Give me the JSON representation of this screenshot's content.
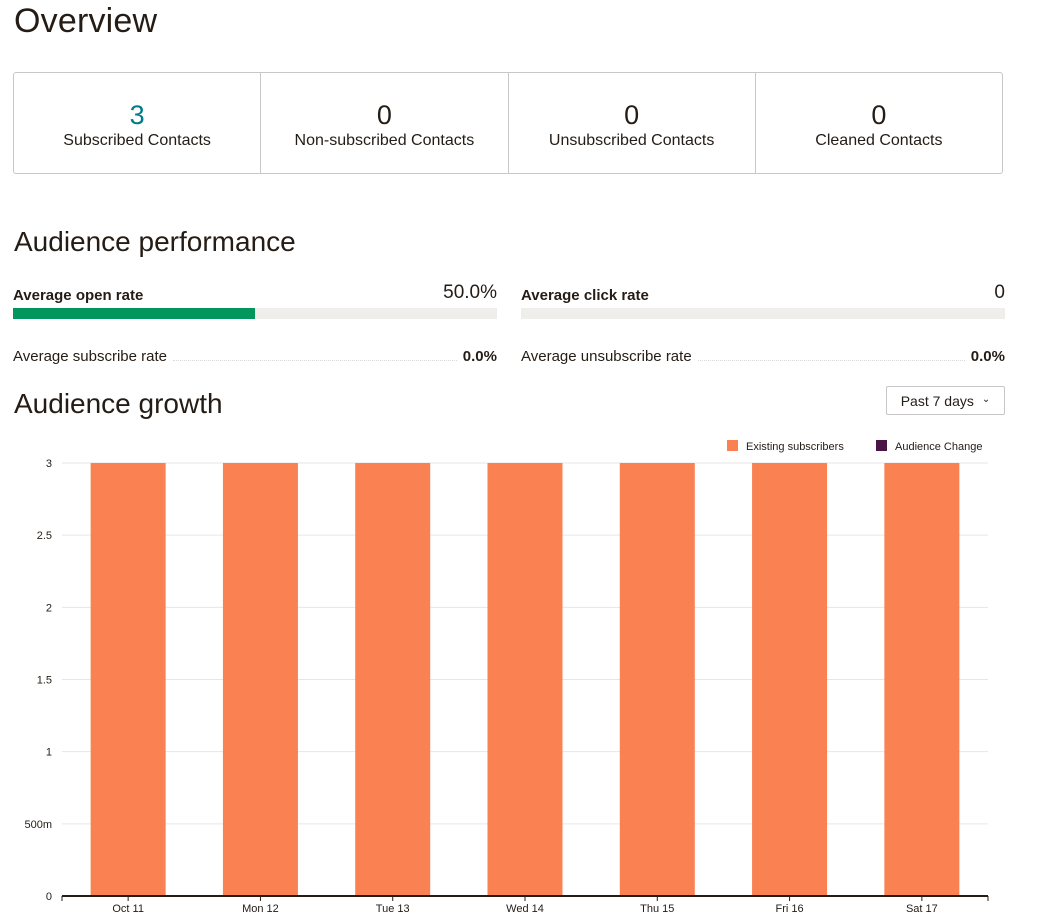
{
  "overview": {
    "title": "Overview",
    "stats": [
      {
        "value": "3",
        "label": "Subscribed Contacts"
      },
      {
        "value": "0",
        "label": "Non-subscribed Contacts"
      },
      {
        "value": "0",
        "label": "Unsubscribed Contacts"
      },
      {
        "value": "0",
        "label": "Cleaned Contacts"
      }
    ]
  },
  "performance": {
    "title": "Audience performance",
    "open_rate": {
      "label": "Average open rate",
      "value": "50.0%",
      "fill": 0.5
    },
    "click_rate": {
      "label": "Average click rate",
      "value": "0",
      "fill": 0
    },
    "subscribe_rate": {
      "label": "Average subscribe rate",
      "value": "0.0%"
    },
    "unsubscribe_rate": {
      "label": "Average unsubscribe rate",
      "value": "0.0%"
    }
  },
  "growth": {
    "title": "Audience growth",
    "range_select": "Past 7 days"
  },
  "colors": {
    "accent": "#007c89",
    "open_bar": "#00965e",
    "existing": "#f98152",
    "change": "#4b1447"
  },
  "chart_data": {
    "type": "bar",
    "categories": [
      "Oct 11",
      "Mon 12",
      "Tue 13",
      "Wed 14",
      "Thu 15",
      "Fri 16",
      "Sat 17"
    ],
    "series": [
      {
        "name": "Existing subscribers",
        "values": [
          3,
          3,
          3,
          3,
          3,
          3,
          3
        ]
      },
      {
        "name": "Audience Change",
        "values": [
          0,
          0,
          0,
          0,
          0,
          0,
          0
        ]
      }
    ],
    "ytick_labels": [
      "0",
      "500m",
      "1",
      "1.5",
      "2",
      "2.5",
      "3"
    ],
    "ylim": [
      0,
      3
    ],
    "grid": true,
    "legend": "top-right"
  }
}
